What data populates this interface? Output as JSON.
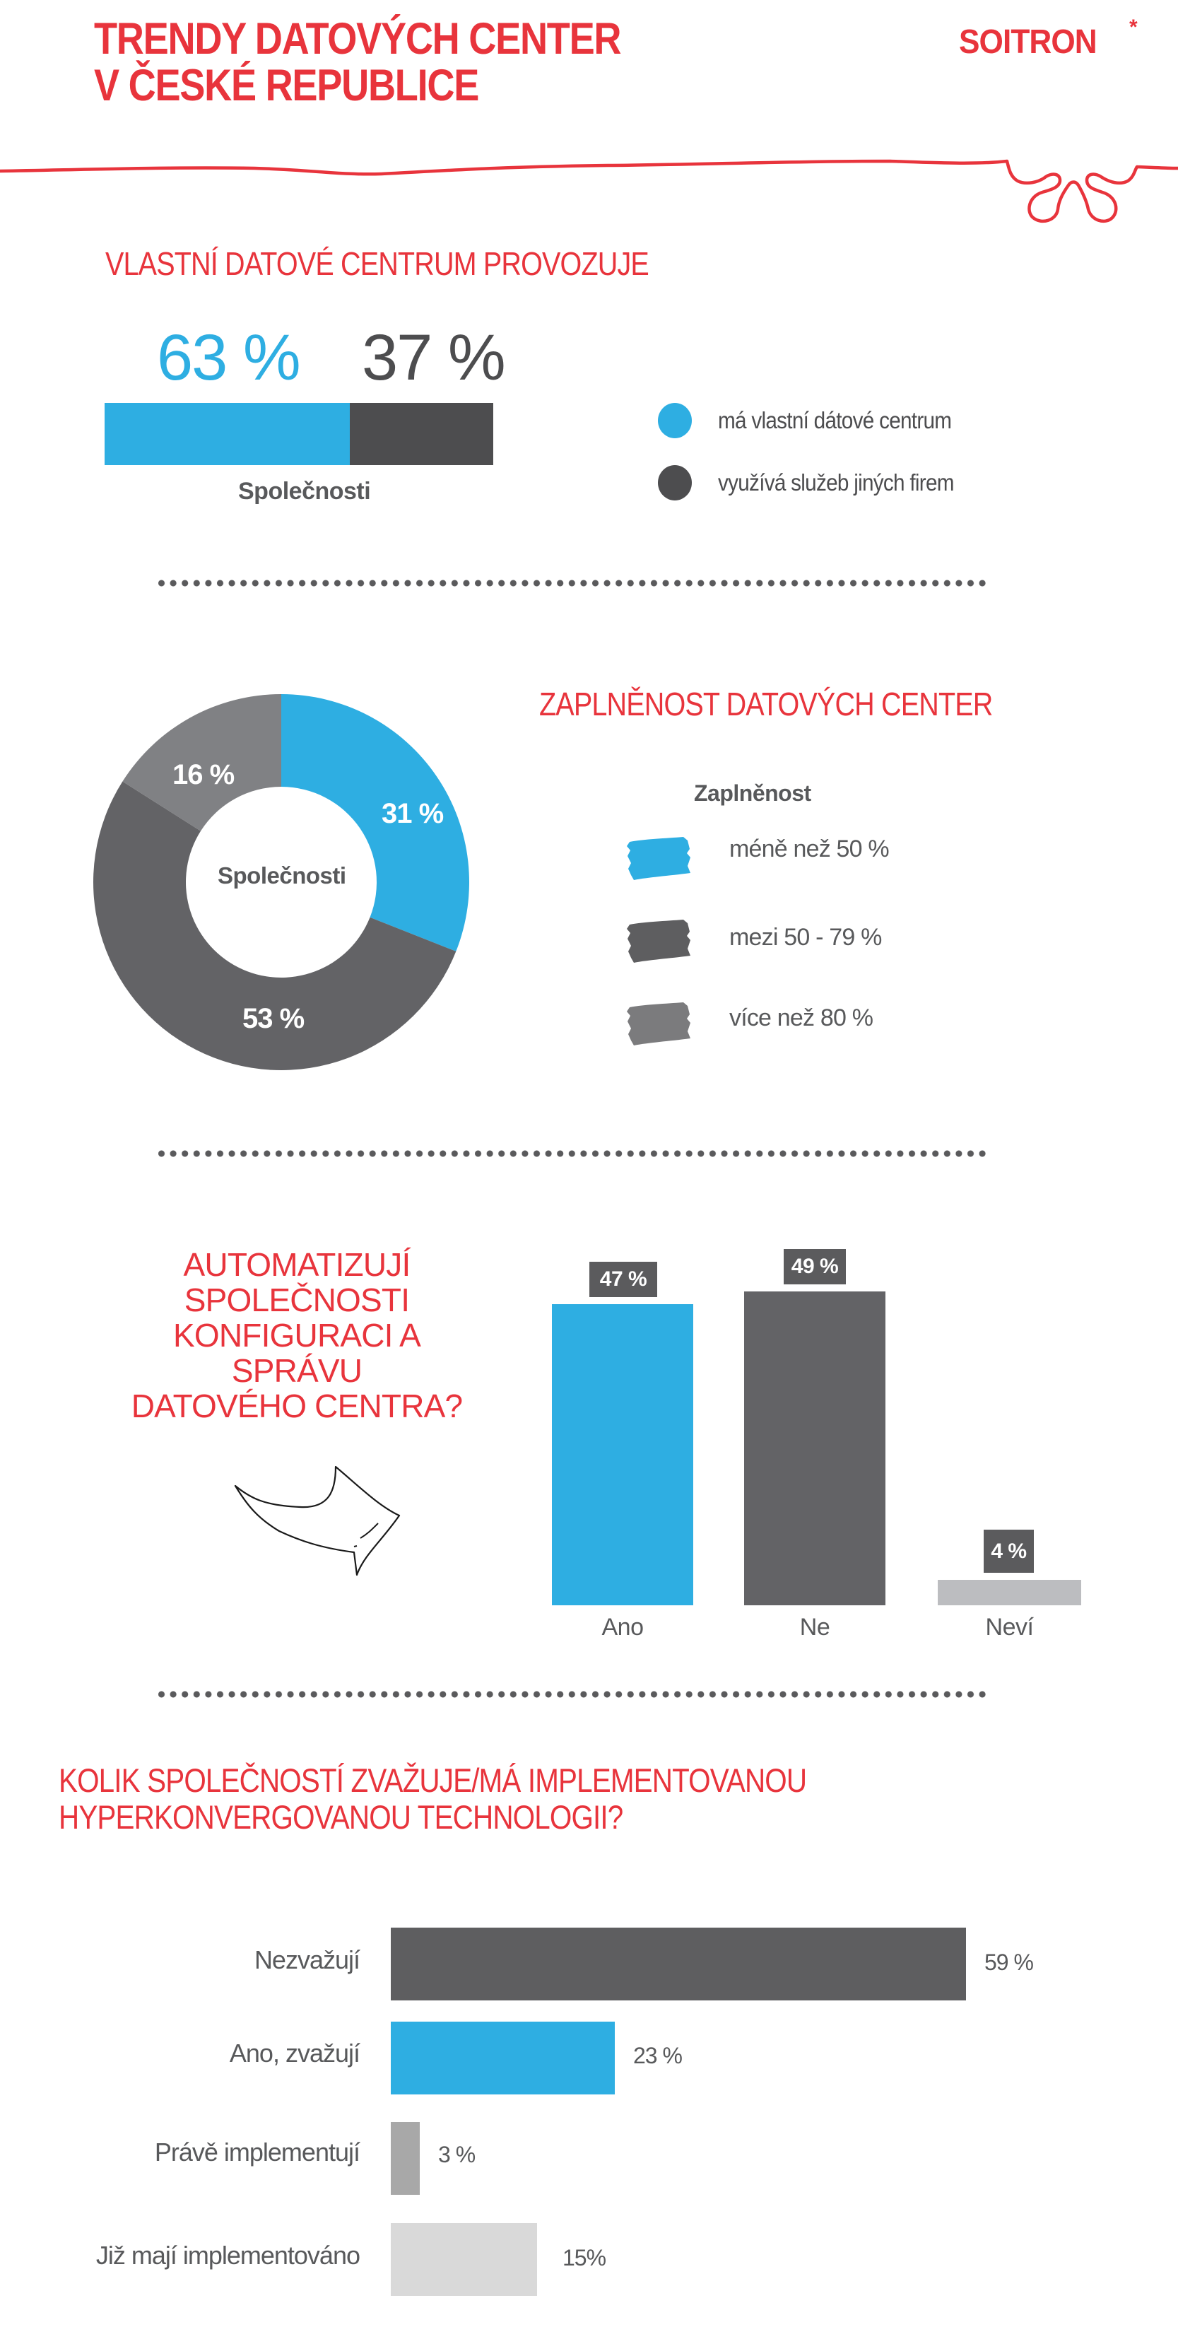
{
  "header": {
    "title_line1": "TRENDY DATOVÝCH CENTER",
    "title_line2": "V ČESKÉ REPUBLICE",
    "logo": "SOITRON",
    "logo_mark": "*"
  },
  "colors": {
    "brand_red": "#e8343c",
    "blue": "#2eaee2",
    "dark_gray": "#4d4d4f",
    "mid_gray": "#636366",
    "gray": "#808184",
    "light_gray": "#bcbdc0",
    "lighter_gray": "#d9d9d9",
    "text_gray": "#58595b"
  },
  "section1": {
    "title": "VLASTNÍ DATOVÉ CENTRUM PROVOZUJE",
    "pct_own": "63 %",
    "pct_other": "37 %",
    "caption": "Společnosti",
    "legend": [
      {
        "label": "má vlastní dátové centrum",
        "color": "#2eaee2"
      },
      {
        "label": "využívá služeb jiných firem",
        "color": "#4d4d4f"
      }
    ]
  },
  "section2": {
    "title": "ZAPLNĚNOST DATOVÝCH CENTER",
    "center_label": "Společnosti",
    "legend_title": "Zaplněnost",
    "slices": [
      {
        "label": "méně než 50 %",
        "value": 31,
        "display": "31 %",
        "color": "#2eaee2"
      },
      {
        "label": "mezi 50 - 79 %",
        "value": 53,
        "display": "53 %",
        "color": "#636366"
      },
      {
        "label": "více než 80 %",
        "value": 16,
        "display": "16 %",
        "color": "#808184"
      }
    ]
  },
  "section3": {
    "title_lines": [
      "AUTOMATIZUJÍ",
      "SPOLEČNOSTI",
      "KONFIGURACI A SPRÁVU",
      "DATOVÉHO CENTRA?"
    ],
    "bars": [
      {
        "label": "Ano",
        "value": 47,
        "display": "47 %",
        "color": "#2eaee2"
      },
      {
        "label": "Ne",
        "value": 49,
        "display": "49 %",
        "color": "#636366"
      },
      {
        "label": "Neví",
        "value": 4,
        "display": "4 %",
        "color": "#bcbdc0"
      }
    ]
  },
  "section4": {
    "title_line1": "KOLIK SPOLEČNOSTÍ ZVAŽUJE/MÁ IMPLEMENTOVANOU",
    "title_line2": "HYPERKONVERGOVANOU TECHNOLOGII?",
    "bars": [
      {
        "label": "Nezvažují",
        "value": 59,
        "display": "59 %",
        "color": "#5e5e60"
      },
      {
        "label": "Ano, zvažují",
        "value": 23,
        "display": "23 %",
        "color": "#2eaee2"
      },
      {
        "label": "Právě implementují",
        "value": 3,
        "display": "3 %",
        "color": "#a8a8a8"
      },
      {
        "label": "Již mají implementováno",
        "value": 15,
        "display": "15%",
        "color": "#d9d9d9"
      }
    ]
  },
  "chart_data": [
    {
      "type": "bar",
      "title": "VLASTNÍ DATOVÉ CENTRUM PROVOZUJE",
      "stacked": true,
      "orientation": "horizontal",
      "categories": [
        "Společnosti"
      ],
      "series": [
        {
          "name": "má vlastní dátové centrum",
          "values": [
            63
          ]
        },
        {
          "name": "využívá služeb jiných firem",
          "values": [
            37
          ]
        }
      ],
      "xlabel": "Společnosti",
      "legend_position": "right"
    },
    {
      "type": "pie",
      "donut": true,
      "title": "ZAPLNĚNOST DATOVÝCH CENTER",
      "center_label": "Společnosti",
      "legend_title": "Zaplněnost",
      "categories": [
        "méně než 50 %",
        "mezi 50 - 79 %",
        "více než 80 %"
      ],
      "values": [
        31,
        53,
        16
      ],
      "legend_position": "right"
    },
    {
      "type": "bar",
      "title": "AUTOMATIZUJÍ SPOLEČNOSTI KONFIGURACI A SPRÁVU DATOVÉHO CENTRA?",
      "categories": [
        "Ano",
        "Ne",
        "Neví"
      ],
      "values": [
        47,
        49,
        4
      ],
      "unit": "%",
      "grid": false
    },
    {
      "type": "bar",
      "orientation": "horizontal",
      "title": "KOLIK SPOLEČNOSTÍ ZVAŽUJE/MÁ IMPLEMENTOVANOU HYPERKONVERGOVANOU TECHNOLOGII?",
      "categories": [
        "Nezvažují",
        "Ano, zvažují",
        "Právě implementují",
        "Již mají implementováno"
      ],
      "values": [
        59,
        23,
        3,
        15
      ],
      "unit": "%",
      "grid": false
    }
  ]
}
